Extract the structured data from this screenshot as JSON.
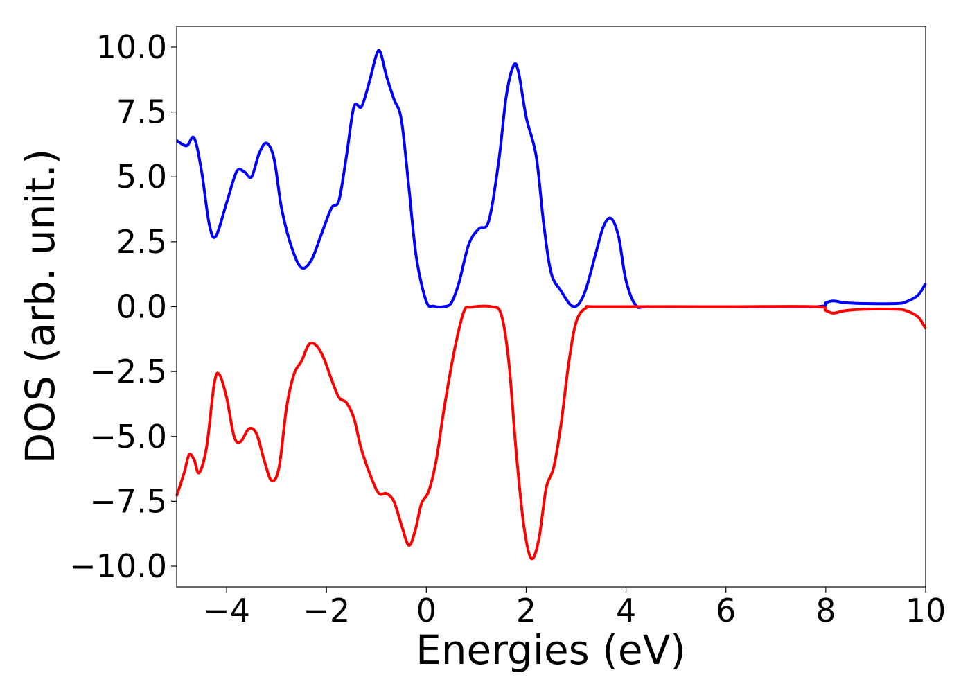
{
  "chart_data": {
    "type": "line",
    "title": "",
    "xlabel": "Energies (eV)",
    "ylabel": "DOS (arb. unit.)",
    "xlim": [
      -5,
      10
    ],
    "ylim": [
      -10.8,
      10.8
    ],
    "xticks": [
      {
        "value": -4,
        "label": "−4"
      },
      {
        "value": -2,
        "label": "−2"
      },
      {
        "value": 0,
        "label": "0"
      },
      {
        "value": 2,
        "label": "2"
      },
      {
        "value": 4,
        "label": "4"
      },
      {
        "value": 6,
        "label": "6"
      },
      {
        "value": 8,
        "label": "8"
      },
      {
        "value": 10,
        "label": "10"
      }
    ],
    "yticks": [
      {
        "value": 10,
        "label": "10.0"
      },
      {
        "value": 7.5,
        "label": "7.5"
      },
      {
        "value": 5,
        "label": "5.0"
      },
      {
        "value": 2.5,
        "label": "2.5"
      },
      {
        "value": 0,
        "label": "0.0"
      },
      {
        "value": -2.5,
        "label": "−2.5"
      },
      {
        "value": -5,
        "label": "−5.0"
      },
      {
        "value": -7.5,
        "label": "−7.5"
      },
      {
        "value": -10,
        "label": "−10.0"
      }
    ],
    "grid": false,
    "legend": "none",
    "series": [
      {
        "color": "#0000ff",
        "points": [
          [
            -5.0,
            6.4
          ],
          [
            -4.8,
            6.2
          ],
          [
            -4.65,
            6.5
          ],
          [
            -4.5,
            5.2
          ],
          [
            -4.35,
            3.2
          ],
          [
            -4.22,
            2.7
          ],
          [
            -4.0,
            4.0
          ],
          [
            -3.8,
            5.2
          ],
          [
            -3.65,
            5.2
          ],
          [
            -3.5,
            5.0
          ],
          [
            -3.35,
            5.9
          ],
          [
            -3.2,
            6.3
          ],
          [
            -3.05,
            5.7
          ],
          [
            -2.9,
            3.8
          ],
          [
            -2.7,
            2.3
          ],
          [
            -2.5,
            1.5
          ],
          [
            -2.3,
            1.8
          ],
          [
            -2.1,
            2.8
          ],
          [
            -1.9,
            3.8
          ],
          [
            -1.75,
            4.1
          ],
          [
            -1.6,
            5.8
          ],
          [
            -1.45,
            7.7
          ],
          [
            -1.3,
            7.7
          ],
          [
            -1.15,
            8.6
          ],
          [
            -1.0,
            9.7
          ],
          [
            -0.92,
            9.8
          ],
          [
            -0.8,
            8.9
          ],
          [
            -0.65,
            8.0
          ],
          [
            -0.5,
            7.2
          ],
          [
            -0.35,
            4.6
          ],
          [
            -0.2,
            1.9
          ],
          [
            0.0,
            0.2
          ],
          [
            0.15,
            0.02
          ],
          [
            0.35,
            0.0
          ],
          [
            0.5,
            0.15
          ],
          [
            0.65,
            0.9
          ],
          [
            0.85,
            2.4
          ],
          [
            1.05,
            3.0
          ],
          [
            1.25,
            3.3
          ],
          [
            1.45,
            5.6
          ],
          [
            1.6,
            8.1
          ],
          [
            1.75,
            9.3
          ],
          [
            1.85,
            9.0
          ],
          [
            2.0,
            7.3
          ],
          [
            2.2,
            5.8
          ],
          [
            2.35,
            3.2
          ],
          [
            2.5,
            1.3
          ],
          [
            2.7,
            0.6
          ],
          [
            2.9,
            0.05
          ],
          [
            3.05,
            0.1
          ],
          [
            3.2,
            0.7
          ],
          [
            3.4,
            2.1
          ],
          [
            3.55,
            3.1
          ],
          [
            3.7,
            3.4
          ],
          [
            3.85,
            2.7
          ],
          [
            4.0,
            1.0
          ],
          [
            4.2,
            0.05
          ],
          [
            4.5,
            0.0
          ],
          [
            6.0,
            0.0
          ],
          [
            7.8,
            0.0
          ],
          [
            8.0,
            0.15
          ],
          [
            8.15,
            0.22
          ],
          [
            8.4,
            0.15
          ],
          [
            8.8,
            0.12
          ],
          [
            9.4,
            0.12
          ],
          [
            9.6,
            0.18
          ],
          [
            9.85,
            0.45
          ],
          [
            10.0,
            0.9
          ]
        ]
      },
      {
        "color": "#ff0000",
        "points": [
          [
            -5.0,
            -7.3
          ],
          [
            -4.85,
            -6.4
          ],
          [
            -4.75,
            -5.7
          ],
          [
            -4.65,
            -5.9
          ],
          [
            -4.55,
            -6.4
          ],
          [
            -4.4,
            -5.4
          ],
          [
            -4.25,
            -3.0
          ],
          [
            -4.15,
            -2.6
          ],
          [
            -4.0,
            -3.5
          ],
          [
            -3.85,
            -5.0
          ],
          [
            -3.72,
            -5.2
          ],
          [
            -3.55,
            -4.7
          ],
          [
            -3.4,
            -4.9
          ],
          [
            -3.25,
            -5.9
          ],
          [
            -3.1,
            -6.7
          ],
          [
            -2.95,
            -6.2
          ],
          [
            -2.8,
            -3.9
          ],
          [
            -2.65,
            -2.6
          ],
          [
            -2.5,
            -2.1
          ],
          [
            -2.35,
            -1.45
          ],
          [
            -2.2,
            -1.5
          ],
          [
            -2.05,
            -2.0
          ],
          [
            -1.9,
            -2.8
          ],
          [
            -1.75,
            -3.5
          ],
          [
            -1.6,
            -3.7
          ],
          [
            -1.45,
            -4.3
          ],
          [
            -1.3,
            -5.5
          ],
          [
            -1.1,
            -6.6
          ],
          [
            -0.95,
            -7.2
          ],
          [
            -0.8,
            -7.2
          ],
          [
            -0.65,
            -7.5
          ],
          [
            -0.5,
            -8.4
          ],
          [
            -0.35,
            -9.2
          ],
          [
            -0.22,
            -8.6
          ],
          [
            -0.1,
            -7.6
          ],
          [
            0.05,
            -7.1
          ],
          [
            0.2,
            -5.9
          ],
          [
            0.35,
            -4.0
          ],
          [
            0.55,
            -1.8
          ],
          [
            0.75,
            -0.2
          ],
          [
            0.9,
            -0.02
          ],
          [
            1.3,
            0.0
          ],
          [
            1.5,
            -0.3
          ],
          [
            1.65,
            -2.1
          ],
          [
            1.8,
            -5.6
          ],
          [
            1.95,
            -8.4
          ],
          [
            2.1,
            -9.7
          ],
          [
            2.25,
            -9.0
          ],
          [
            2.4,
            -7.0
          ],
          [
            2.55,
            -6.2
          ],
          [
            2.7,
            -4.5
          ],
          [
            2.85,
            -2.2
          ],
          [
            3.0,
            -0.6
          ],
          [
            3.2,
            -0.05
          ],
          [
            3.5,
            0.0
          ],
          [
            6.0,
            0.0
          ],
          [
            7.8,
            0.0
          ],
          [
            8.0,
            -0.15
          ],
          [
            8.15,
            -0.25
          ],
          [
            8.4,
            -0.15
          ],
          [
            8.8,
            -0.1
          ],
          [
            9.4,
            -0.1
          ],
          [
            9.6,
            -0.15
          ],
          [
            9.85,
            -0.4
          ],
          [
            10.0,
            -0.85
          ]
        ]
      }
    ]
  }
}
